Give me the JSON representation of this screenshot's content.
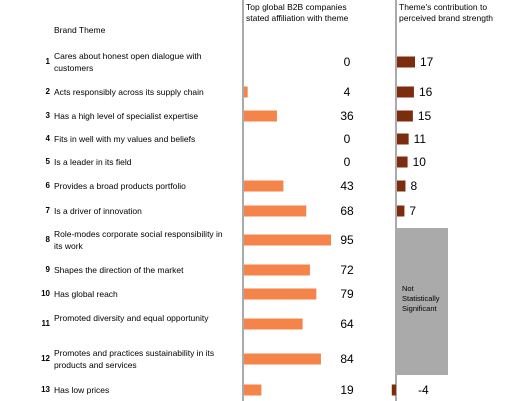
{
  "headers": {
    "brand_theme": "Brand Theme",
    "col_a": "Top global B2B companies stated affiliation with theme",
    "col_b": "Theme's contribution to perceived brand strength"
  },
  "not_significant": "Not Statistically Significant",
  "colors": {
    "affiliation_bar": "#f4844a",
    "contribution_bar": "#7b2d0e",
    "not_significant_box": "#aaaaaa",
    "divider": "#555555"
  },
  "chart_data": [
    {
      "type": "bar",
      "orientation": "horizontal",
      "title": "Top global B2B companies stated affiliation with theme",
      "categories": [
        "Cares about honest open dialogue with customers",
        "Acts responsibly across its supply chain",
        "Has a high level of specialist expertise",
        "Fits in well with my values and beliefs",
        "Is a leader in its field",
        "Provides a broad products portfolio",
        "Is a driver of innovation",
        "Role-modes corporate social responsibility in its work",
        "Shapes the direction of the market",
        "Has global reach",
        "Promoted diversity and equal opportunity",
        "Promotes and practices sustainability in its products and services",
        "Has low prices"
      ],
      "numbers": [
        "1",
        "2",
        "3",
        "4",
        "5",
        "6",
        "7",
        "8",
        "9",
        "10",
        "11",
        "12",
        "13"
      ],
      "values": [
        0,
        4,
        36,
        0,
        0,
        43,
        68,
        95,
        72,
        79,
        64,
        84,
        19
      ],
      "value_labels": [
        "0",
        "4",
        "36",
        "0",
        "0",
        "43",
        "68",
        "95",
        "72",
        "79",
        "64",
        "84",
        "19"
      ],
      "xlim": [
        0,
        100
      ]
    },
    {
      "type": "bar",
      "orientation": "horizontal",
      "title": "Theme's contribution to perceived brand strength",
      "values": [
        17,
        16,
        15,
        11,
        10,
        8,
        7,
        null,
        null,
        null,
        null,
        null,
        -4
      ],
      "value_labels": [
        "17",
        "16",
        "15",
        "11",
        "10",
        "8",
        "7",
        "",
        "",
        "",
        "",
        "",
        "-4"
      ],
      "not_significant_rows": [
        8,
        9,
        10,
        11,
        12
      ],
      "xlim": [
        -5,
        20
      ]
    }
  ]
}
